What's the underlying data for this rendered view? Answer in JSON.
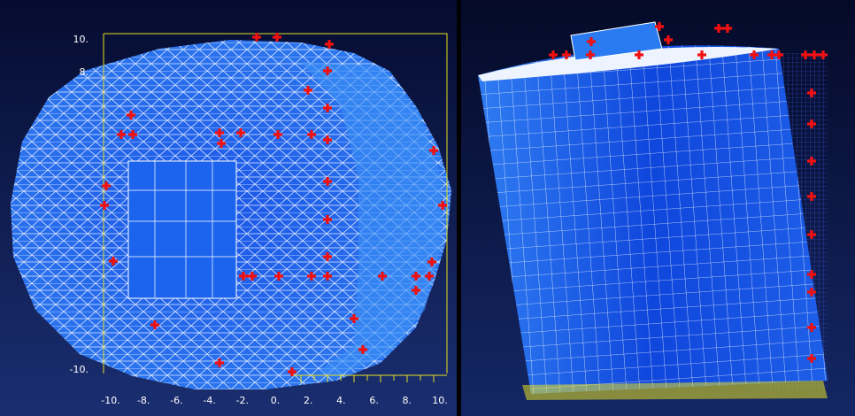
{
  "left_panel": {
    "y_labels": [
      "10.",
      "8.",
      "-10."
    ],
    "x_labels": [
      "-10.",
      "-8.",
      "-6.",
      "-4.",
      "-2.",
      "0.",
      "2.",
      "4.",
      "6.",
      "8.",
      "10."
    ]
  }
}
